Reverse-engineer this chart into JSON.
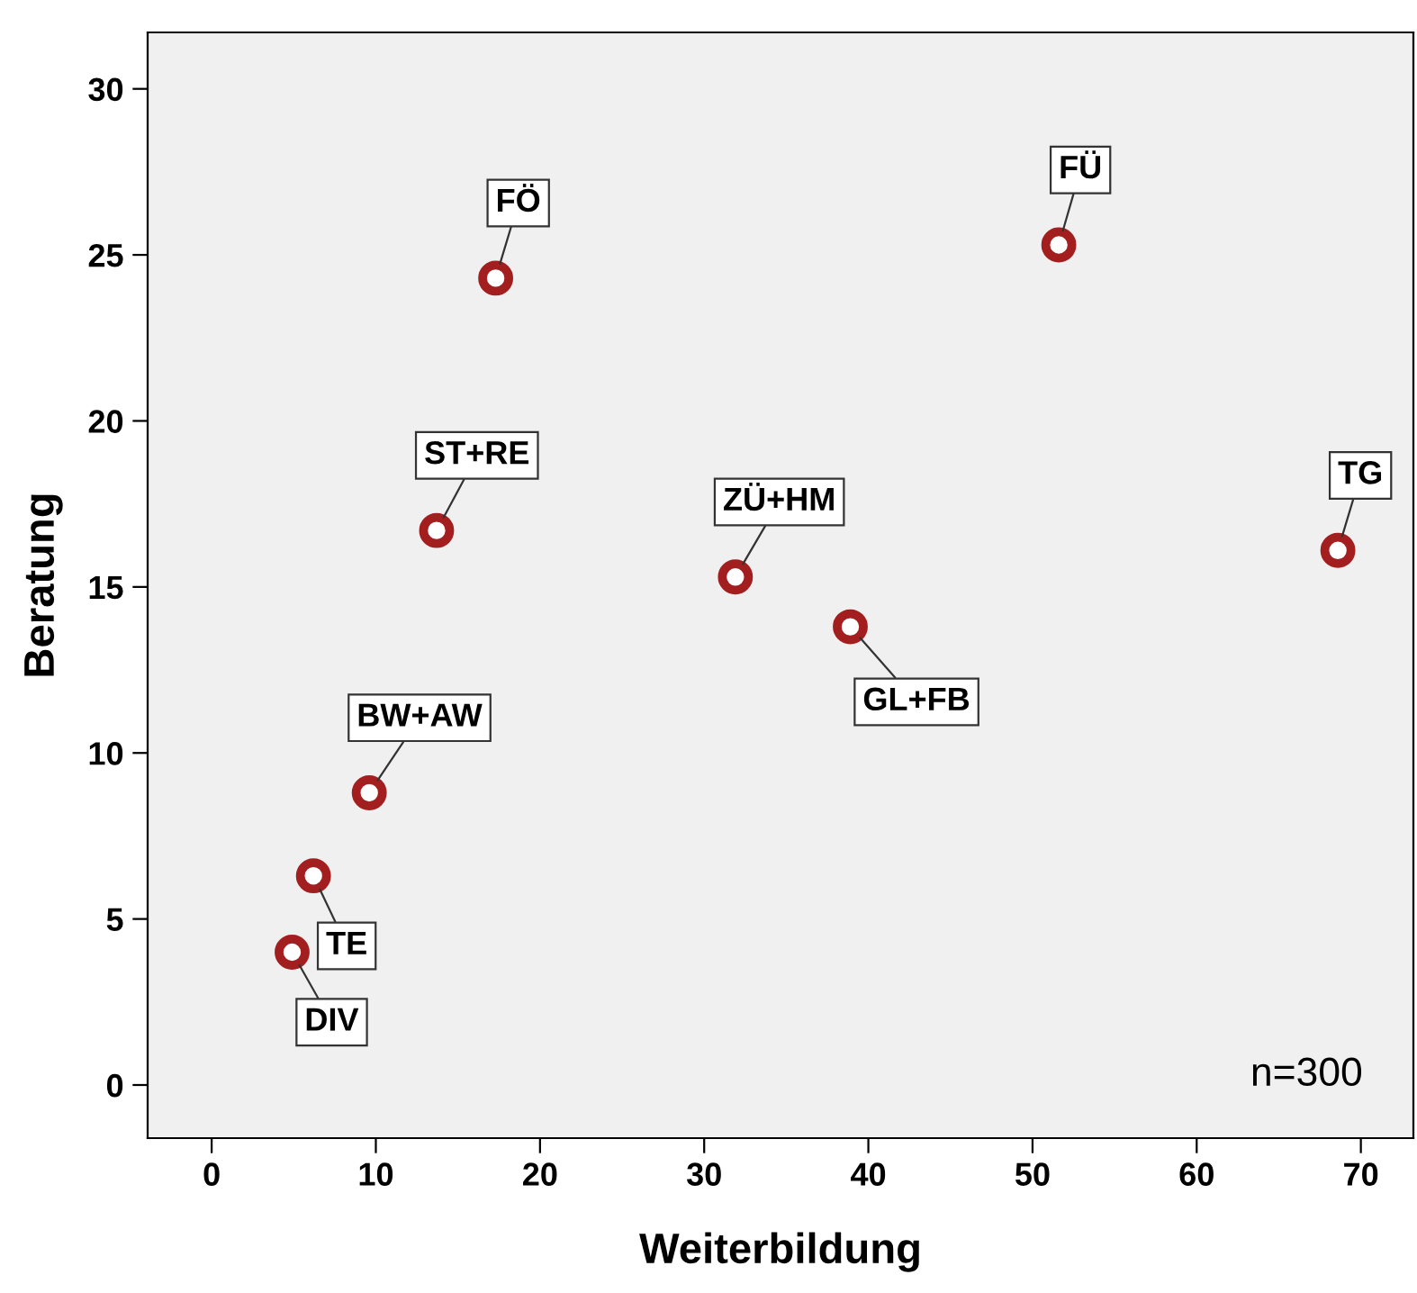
{
  "chart_data": {
    "type": "scatter",
    "xlabel": "Weiterbildung",
    "ylabel": "Beratung",
    "x": [
      17.3,
      51.6,
      13.7,
      31.9,
      38.9,
      68.6,
      9.6,
      6.2,
      4.9
    ],
    "series": [
      {
        "color": "#a31f1f",
        "values": [
          24.3,
          25.3,
          16.7,
          15.3,
          13.8,
          16.1,
          8.8,
          6.3,
          4.0
        ]
      }
    ],
    "xlim": [
      -3.9,
      73.2
    ],
    "xticks": [
      0,
      10,
      20,
      30,
      40,
      50,
      60,
      70
    ],
    "ylim": [
      -1.6,
      31.7
    ],
    "yticks": [
      0,
      5,
      10,
      15,
      20,
      25,
      30
    ],
    "marker": "circle",
    "grid": false,
    "legend": false,
    "annotations": [
      {
        "text": "FÖ",
        "x": 17.3,
        "y": 24.3
      },
      {
        "text": "FÜ",
        "x": 51.6,
        "y": 25.3
      },
      {
        "text": "ST+RE",
        "x": 13.7,
        "y": 16.7
      },
      {
        "text": "ZÜ+HM",
        "x": 31.9,
        "y": 15.3
      },
      {
        "text": "GL+FB",
        "x": 38.9,
        "y": 13.8
      },
      {
        "text": "TG",
        "x": 68.6,
        "y": 16.1
      },
      {
        "text": "BW+AW",
        "x": 9.6,
        "y": 8.8
      },
      {
        "text": "TE",
        "x": 6.2,
        "y": 6.3
      },
      {
        "text": "DIV",
        "x": 4.9,
        "y": 4.0
      },
      "n=300"
    ]
  }
}
